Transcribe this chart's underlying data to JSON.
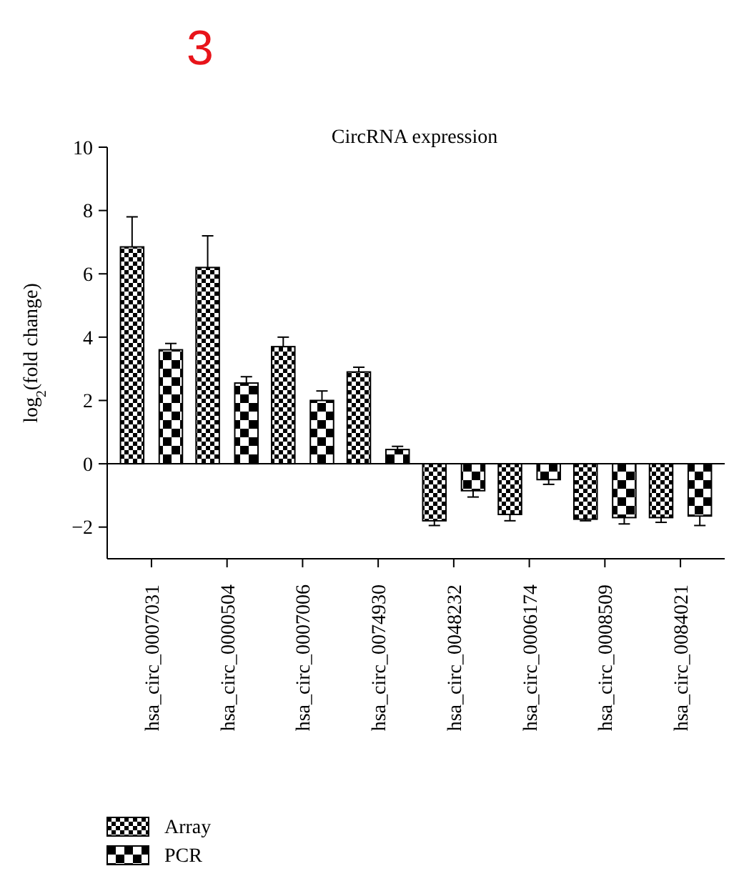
{
  "chart_data": {
    "type": "bar",
    "title": "CircRNA expression",
    "ylabel": "log$_{2}$(fold change)",
    "annotations": [
      "3"
    ],
    "categories": [
      "hsa_circ_0007031",
      "hsa_circ_0000504",
      "hsa_circ_0007006",
      "hsa_circ_0074930",
      "hsa_circ_0048232",
      "hsa_circ_0006174",
      "hsa_circ_0008509",
      "hsa_circ_0084021"
    ],
    "series": [
      {
        "name": "Array",
        "color": "#000000",
        "values": [
          6.85,
          6.2,
          3.7,
          2.9,
          -1.8,
          -1.6,
          -1.75,
          -1.7
        ],
        "errors": [
          0.95,
          1.0,
          0.3,
          0.15,
          0.15,
          0.2,
          0.05,
          0.15
        ]
      },
      {
        "name": "PCR",
        "color": "#000000",
        "values": [
          3.6,
          2.55,
          2.0,
          0.45,
          -0.85,
          -0.5,
          -1.7,
          -1.65
        ],
        "errors": [
          0.2,
          0.2,
          0.3,
          0.1,
          0.2,
          0.15,
          0.2,
          0.3
        ]
      }
    ],
    "ylim": [
      -3,
      10
    ],
    "yticks": [
      -2,
      0,
      2,
      4,
      6,
      8,
      10
    ],
    "ref_lines": [
      {
        "axis": "y",
        "value": 0
      }
    ],
    "legend": "bottom left"
  }
}
